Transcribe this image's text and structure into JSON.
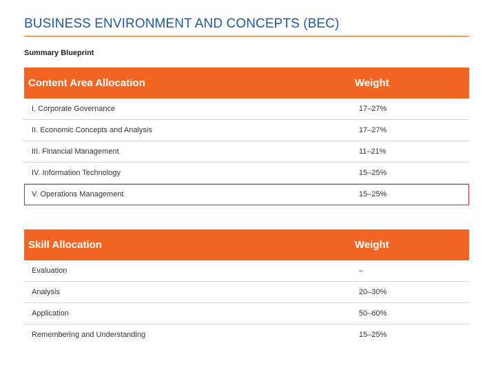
{
  "page": {
    "title": "BUSINESS ENVIRONMENT AND CONCEPTS (BEC)",
    "subtitle": "Summary Blueprint"
  },
  "colors": {
    "title": "#1a5aa8",
    "header_bg": "#f26522",
    "highlight_border": "#d0262b",
    "divider": "#d6d6d6"
  },
  "content_table": {
    "headers": [
      "Content Area Allocation",
      "Weight"
    ],
    "rows": [
      {
        "label": "I. Corporate Governance",
        "weight": "17–27%"
      },
      {
        "label": "II. Economic Concepts and Analysis",
        "weight": "17–27%"
      },
      {
        "label": "III. Financial Management",
        "weight": "11–21%"
      },
      {
        "label": "IV. Information Technology",
        "weight": "15–25%"
      },
      {
        "label": "V. Operations Management",
        "weight": "15–25%",
        "highlighted": true
      }
    ]
  },
  "skill_table": {
    "headers": [
      "Skill Allocation",
      "Weight"
    ],
    "rows": [
      {
        "label": "Evaluation",
        "weight": "–"
      },
      {
        "label": "Analysis",
        "weight": "20–30%"
      },
      {
        "label": "Application",
        "weight": "50–60%"
      },
      {
        "label": "Remembering and Understanding",
        "weight": "15–25%"
      }
    ]
  }
}
